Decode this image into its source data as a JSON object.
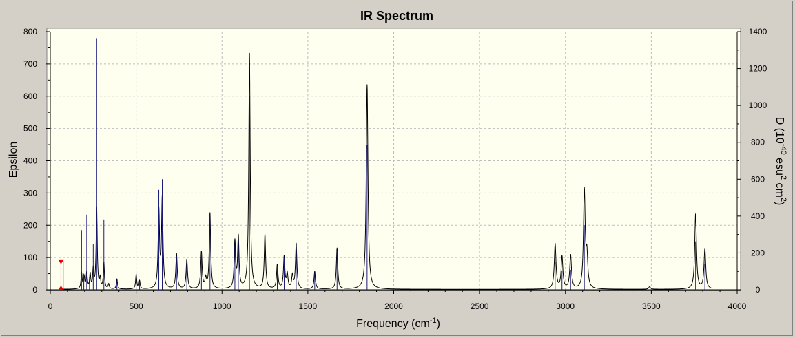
{
  "chart_data": {
    "type": "line",
    "title": "IR Spectrum",
    "xlabel": "Frequency (cm",
    "xlabel_sup": "-1",
    "xlabel_end": ")",
    "ylabel": "Epsilon",
    "y2label_parts": [
      "D (10",
      "-40",
      " esu",
      "2",
      " cm",
      "2",
      ")"
    ],
    "xlim": [
      0,
      4000
    ],
    "ylim": [
      0,
      800
    ],
    "y2lim": [
      0,
      1400
    ],
    "xticks": [
      0,
      500,
      1000,
      1500,
      2000,
      2500,
      3000,
      3500,
      4000
    ],
    "yticks": [
      0,
      100,
      200,
      300,
      400,
      500,
      600,
      700,
      800
    ],
    "y2ticks": [
      0,
      200,
      400,
      600,
      800,
      1000,
      1200,
      1400
    ],
    "grid": true,
    "series": [
      {
        "color": "#000000",
        "peaks": [
          {
            "x": 182,
            "y": 50,
            "w": 4
          },
          {
            "x": 197,
            "y": 35,
            "w": 4
          },
          {
            "x": 212,
            "y": 50,
            "w": 4
          },
          {
            "x": 232,
            "y": 45,
            "w": 4
          },
          {
            "x": 250,
            "y": 60,
            "w": 4
          },
          {
            "x": 270,
            "y": 252,
            "w": 4
          },
          {
            "x": 290,
            "y": 30,
            "w": 4
          },
          {
            "x": 312,
            "y": 80,
            "w": 4
          },
          {
            "x": 340,
            "y": 15,
            "w": 4
          },
          {
            "x": 388,
            "y": 30,
            "w": 4
          },
          {
            "x": 500,
            "y": 45,
            "w": 4
          },
          {
            "x": 520,
            "y": 25,
            "w": 4
          },
          {
            "x": 632,
            "y": 240,
            "w": 5
          },
          {
            "x": 652,
            "y": 280,
            "w": 5
          },
          {
            "x": 735,
            "y": 110,
            "w": 5
          },
          {
            "x": 795,
            "y": 92,
            "w": 5
          },
          {
            "x": 880,
            "y": 115,
            "w": 5
          },
          {
            "x": 905,
            "y": 30,
            "w": 5
          },
          {
            "x": 930,
            "y": 235,
            "w": 5
          },
          {
            "x": 1075,
            "y": 145,
            "w": 5
          },
          {
            "x": 1095,
            "y": 158,
            "w": 5
          },
          {
            "x": 1160,
            "y": 730,
            "w": 5
          },
          {
            "x": 1250,
            "y": 168,
            "w": 5
          },
          {
            "x": 1322,
            "y": 75,
            "w": 5
          },
          {
            "x": 1362,
            "y": 100,
            "w": 5
          },
          {
            "x": 1380,
            "y": 45,
            "w": 5
          },
          {
            "x": 1410,
            "y": 40,
            "w": 5
          },
          {
            "x": 1432,
            "y": 140,
            "w": 5
          },
          {
            "x": 1540,
            "y": 55,
            "w": 5
          },
          {
            "x": 1670,
            "y": 128,
            "w": 5
          },
          {
            "x": 1845,
            "y": 635,
            "w": 6
          },
          {
            "x": 2940,
            "y": 140,
            "w": 6
          },
          {
            "x": 2980,
            "y": 100,
            "w": 6
          },
          {
            "x": 3030,
            "y": 105,
            "w": 6
          },
          {
            "x": 3110,
            "y": 303,
            "w": 6
          },
          {
            "x": 3125,
            "y": 95,
            "w": 6
          },
          {
            "x": 3490,
            "y": 8,
            "w": 6
          },
          {
            "x": 3758,
            "y": 233,
            "w": 6
          },
          {
            "x": 3812,
            "y": 125,
            "w": 6
          }
        ]
      },
      {
        "color": "#1a1a7a",
        "sticks": [
          {
            "x": 75,
            "y": 90
          },
          {
            "x": 182,
            "y": 185
          },
          {
            "x": 195,
            "y": 50
          },
          {
            "x": 212,
            "y": 233
          },
          {
            "x": 228,
            "y": 40
          },
          {
            "x": 250,
            "y": 143
          },
          {
            "x": 270,
            "y": 780
          },
          {
            "x": 312,
            "y": 218
          },
          {
            "x": 388,
            "y": 28
          },
          {
            "x": 500,
            "y": 52
          },
          {
            "x": 520,
            "y": 22
          },
          {
            "x": 632,
            "y": 310
          },
          {
            "x": 652,
            "y": 343
          },
          {
            "x": 735,
            "y": 105
          },
          {
            "x": 795,
            "y": 88
          },
          {
            "x": 880,
            "y": 112
          },
          {
            "x": 930,
            "y": 232
          },
          {
            "x": 1075,
            "y": 140
          },
          {
            "x": 1095,
            "y": 155
          },
          {
            "x": 1160,
            "y": 600
          },
          {
            "x": 1250,
            "y": 165
          },
          {
            "x": 1322,
            "y": 72
          },
          {
            "x": 1362,
            "y": 98
          },
          {
            "x": 1432,
            "y": 138
          },
          {
            "x": 1540,
            "y": 52
          },
          {
            "x": 1670,
            "y": 122
          },
          {
            "x": 1845,
            "y": 450
          },
          {
            "x": 2940,
            "y": 85
          },
          {
            "x": 2980,
            "y": 60
          },
          {
            "x": 3030,
            "y": 62
          },
          {
            "x": 3110,
            "y": 200
          },
          {
            "x": 3758,
            "y": 150
          },
          {
            "x": 3812,
            "y": 80
          }
        ]
      }
    ],
    "marker": {
      "x": 62,
      "y": 90,
      "color": "#ee0000"
    }
  }
}
